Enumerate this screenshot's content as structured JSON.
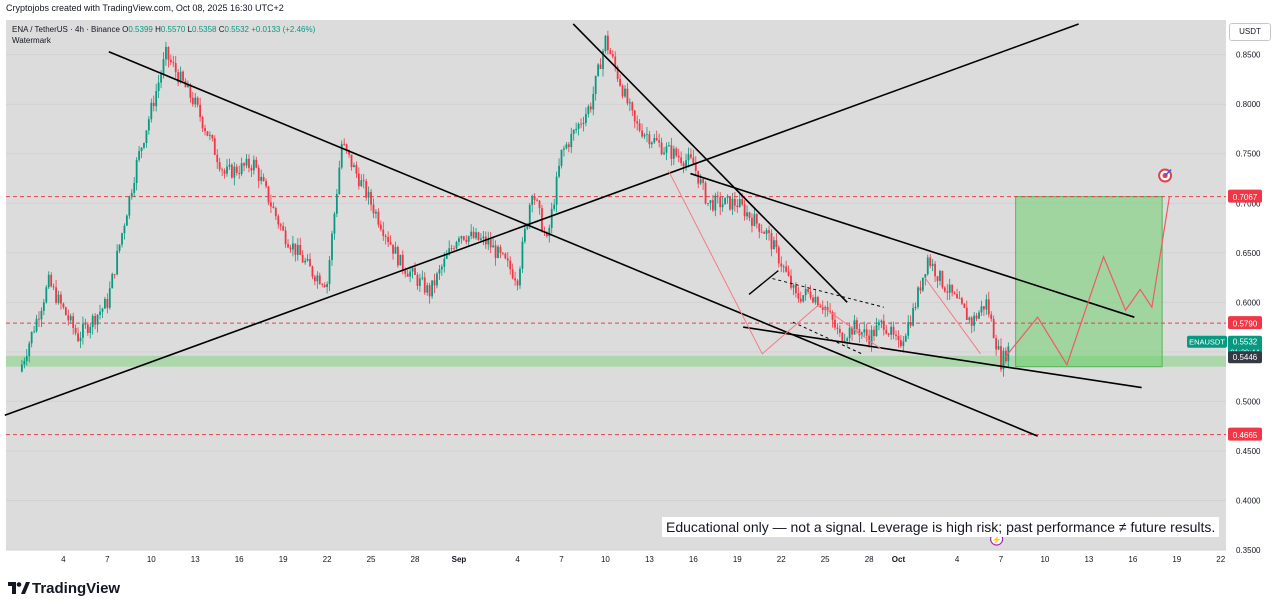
{
  "header": {
    "caption": "Cryptojobs created with TradingView.com, Oct 08, 2025 16:30 UTC+2",
    "symbol": "ENA / TetherUS · 4h · Binance",
    "ohlc": {
      "o_label": "O",
      "o": "0.5399",
      "h_label": "H",
      "h": "0.5570",
      "l_label": "L",
      "l": "0.5358",
      "c_label": "C",
      "c": "0.5532",
      "change": "+0.0133 (+2.46%)"
    },
    "watermark": "Watermark",
    "currency": "USDT"
  },
  "brand": {
    "name": "TradingView"
  },
  "disclaimer": "Educational only — not a signal. Leverage is high risk; past performance ≠ future results.",
  "colors": {
    "up": "#089981",
    "down": "#f23645",
    "bg": "#dcdcdc",
    "zone": "#6fd06f",
    "level_line": "#e0434b",
    "projection": "#f47c85"
  },
  "chart_data": {
    "type": "candlestick",
    "symbol": "ENAUSDT",
    "timeframe": "4h",
    "x_ticks": [
      "4",
      "7",
      "10",
      "13",
      "16",
      "19",
      "22",
      "25",
      "28",
      "Sep",
      "4",
      "7",
      "10",
      "13",
      "16",
      "19",
      "22",
      "25",
      "28",
      "Oct",
      "4",
      "7",
      "10",
      "13",
      "16",
      "19",
      "22"
    ],
    "ylim": [
      0.35,
      0.885
    ],
    "y_ticks": [
      "0.8500",
      "0.8000",
      "0.7500",
      "0.7000",
      "0.6500",
      "0.6000",
      "0.5500",
      "0.5000",
      "0.4500",
      "0.4000",
      "0.3500"
    ],
    "price_path": [
      {
        "d": 1,
        "p": 0.53
      },
      {
        "d": 3,
        "p": 0.62
      },
      {
        "d": 5,
        "p": 0.565
      },
      {
        "d": 7,
        "p": 0.6
      },
      {
        "d": 9,
        "p": 0.74
      },
      {
        "d": 11,
        "p": 0.85
      },
      {
        "d": 13,
        "p": 0.8
      },
      {
        "d": 15,
        "p": 0.73
      },
      {
        "d": 17,
        "p": 0.74
      },
      {
        "d": 19,
        "p": 0.67
      },
      {
        "d": 21,
        "p": 0.63
      },
      {
        "d": 22,
        "p": 0.62
      },
      {
        "d": 23,
        "p": 0.76
      },
      {
        "d": 25,
        "p": 0.7
      },
      {
        "d": 27,
        "p": 0.64
      },
      {
        "d": 29,
        "p": 0.61
      },
      {
        "d": 31,
        "p": 0.67
      },
      {
        "d": 33,
        "p": 0.66
      },
      {
        "d": 35,
        "p": 0.625
      },
      {
        "d": 36,
        "p": 0.715
      },
      {
        "d": 37,
        "p": 0.66
      },
      {
        "d": 38,
        "p": 0.75
      },
      {
        "d": 40,
        "p": 0.8
      },
      {
        "d": 41,
        "p": 0.865
      },
      {
        "d": 43,
        "p": 0.78
      },
      {
        "d": 45,
        "p": 0.755
      },
      {
        "d": 47,
        "p": 0.74
      },
      {
        "d": 48,
        "p": 0.7
      },
      {
        "d": 50,
        "p": 0.7
      },
      {
        "d": 52,
        "p": 0.67
      },
      {
        "d": 53,
        "p": 0.64
      },
      {
        "d": 54,
        "p": 0.605
      },
      {
        "d": 55,
        "p": 0.61
      },
      {
        "d": 56,
        "p": 0.595
      },
      {
        "d": 57,
        "p": 0.565
      },
      {
        "d": 58,
        "p": 0.575
      },
      {
        "d": 59,
        "p": 0.565
      },
      {
        "d": 60,
        "p": 0.58
      },
      {
        "d": 61,
        "p": 0.555
      },
      {
        "d": 62,
        "p": 0.59
      },
      {
        "d": 63,
        "p": 0.645
      },
      {
        "d": 64,
        "p": 0.62
      },
      {
        "d": 65,
        "p": 0.6
      },
      {
        "d": 66,
        "p": 0.58
      },
      {
        "d": 67,
        "p": 0.6
      },
      {
        "d": 68,
        "p": 0.54
      },
      {
        "d": 68.5,
        "p": 0.553
      }
    ],
    "horizontal_levels": [
      {
        "label": "0.7067",
        "price": 0.7067
      },
      {
        "label": "0.5790",
        "price": 0.579
      },
      {
        "label": "0.4665",
        "price": 0.4665
      }
    ],
    "current_price": {
      "symbol": "ENAUSDT",
      "price": "0.5532",
      "countdown": "01:29:44"
    },
    "support_label": {
      "price": "0.5446"
    },
    "support_zone": [
      0.535,
      0.546
    ],
    "target_zone": {
      "from_day": 69,
      "to_day": 79,
      "low": 0.535,
      "high": 0.7067
    },
    "projection": [
      {
        "d": 68.3,
        "p": 0.545
      },
      {
        "d": 70.5,
        "p": 0.585
      },
      {
        "d": 72.5,
        "p": 0.537
      },
      {
        "d": 75,
        "p": 0.646
      },
      {
        "d": 76.5,
        "p": 0.592
      },
      {
        "d": 77.5,
        "p": 0.613
      },
      {
        "d": 78.3,
        "p": 0.595
      },
      {
        "d": 79.5,
        "p": 0.707
      }
    ],
    "trendlines": [
      [
        {
          "d": 7.1,
          "p": 0.853
        },
        {
          "d": 70.5,
          "p": 0.465
        }
      ],
      [
        {
          "d": 0,
          "p": 0.486
        },
        {
          "d": 73.3,
          "p": 0.881
        }
      ],
      [
        {
          "d": 38.8,
          "p": 0.881
        },
        {
          "d": 57.5,
          "p": 0.6
        }
      ],
      [
        {
          "d": 46.8,
          "p": 0.73
        },
        {
          "d": 77.1,
          "p": 0.585
        }
      ],
      [
        {
          "d": 50.4,
          "p": 0.575
        },
        {
          "d": 77.6,
          "p": 0.514
        }
      ]
    ]
  }
}
